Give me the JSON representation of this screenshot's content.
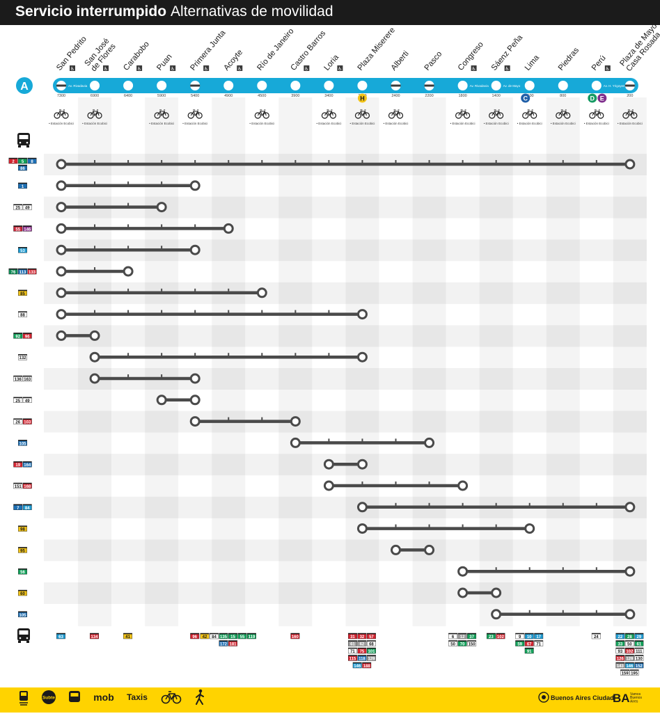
{
  "header": {
    "title": "Servicio interrumpido",
    "subtitle": "Alternativas de movilidad"
  },
  "line": {
    "letter": "A",
    "color": "#17a9d8"
  },
  "stations": [
    {
      "name": "San Pedrito",
      "access": true,
      "street": "Av. Rivadavia",
      "num": "7300",
      "bike": true,
      "open": false
    },
    {
      "name": "San José de Flores",
      "access": true,
      "street": "",
      "num": "6900",
      "bike": true,
      "open": true
    },
    {
      "name": "Carabobo",
      "access": true,
      "street": "",
      "num": "6400",
      "bike": false,
      "open": true
    },
    {
      "name": "Puan",
      "access": true,
      "street": "",
      "num": "5900",
      "bike": true,
      "open": true
    },
    {
      "name": "Primera Junta",
      "access": true,
      "street": "",
      "num": "5400",
      "bike": true,
      "open": false
    },
    {
      "name": "Acoyte",
      "access": true,
      "street": "",
      "num": "4900",
      "bike": false,
      "open": true
    },
    {
      "name": "Río de Janeiro",
      "access": false,
      "street": "",
      "num": "4500",
      "bike": true,
      "open": true
    },
    {
      "name": "Castro Barros",
      "access": true,
      "street": "",
      "num": "3900",
      "bike": false,
      "open": true
    },
    {
      "name": "Loria",
      "access": true,
      "street": "",
      "num": "3400",
      "bike": true,
      "open": true
    },
    {
      "name": "Plaza Miserere",
      "access": false,
      "street": "",
      "num": "2800",
      "bike": true,
      "open": true
    },
    {
      "name": "Alberti",
      "access": false,
      "street": "",
      "num": "2400",
      "bike": true,
      "open": false
    },
    {
      "name": "Pasco",
      "access": false,
      "street": "",
      "num": "2200",
      "bike": false,
      "open": false
    },
    {
      "name": "Congreso",
      "access": true,
      "street": "Av. Rivadavia",
      "num": "1800",
      "bike": true,
      "open": true
    },
    {
      "name": "Sáenz Peña",
      "access": true,
      "street": "Av. de Mayo",
      "num": "1400",
      "bike": true,
      "open": true
    },
    {
      "name": "Lima",
      "access": false,
      "street": "",
      "num": "1100",
      "bike": true,
      "open": true
    },
    {
      "name": "Piedras",
      "access": false,
      "street": "",
      "num": "800",
      "bike": true,
      "open": true
    },
    {
      "name": "Perú",
      "access": true,
      "street": "Av. H. Yrigoyen",
      "num": "",
      "bike": true,
      "open": true
    },
    {
      "name": "Plaza de Mayo Casa Rosada",
      "access": false,
      "street": "",
      "num": "200",
      "bike": true,
      "open": false
    }
  ],
  "bike_label": "• Estación Ecobici",
  "transfers": [
    {
      "station": 9,
      "letter": "H",
      "color": "#f2c318",
      "text": "#1b1b1b"
    },
    {
      "station": 14,
      "letter": "C",
      "color": "#1f5fa8",
      "text": "#ffffff"
    },
    {
      "station": 16,
      "letter": "D",
      "color": "#159a63",
      "text": "#ffffff"
    },
    {
      "station": 16,
      "letter": "E",
      "color": "#7f2e8c",
      "text": "#ffffff",
      "offset": 14
    }
  ],
  "bus_rows": [
    {
      "from": 0,
      "to": 17,
      "badges": [
        {
          "n": "2",
          "c": "#d32531"
        },
        {
          "n": "5",
          "c": "#13a05a"
        },
        {
          "n": "8",
          "c": "#1d6fb4"
        },
        {
          "n": "86",
          "c": "#1d6fb4"
        }
      ]
    },
    {
      "from": 0,
      "to": 4,
      "badges": [
        {
          "n": "1",
          "c": "#1d6fb4"
        }
      ]
    },
    {
      "from": 0,
      "to": 3,
      "badges": [
        {
          "n": "25",
          "c": "#ffffff"
        },
        {
          "n": "49",
          "c": "#ffffff"
        }
      ]
    },
    {
      "from": 0,
      "to": 5,
      "badges": [
        {
          "n": "55",
          "c": "#c8273a"
        },
        {
          "n": "146",
          "c": "#8c2f8c"
        }
      ]
    },
    {
      "from": 0,
      "to": 4,
      "badges": [
        {
          "n": "53",
          "c": "#1f9bd2"
        }
      ]
    },
    {
      "from": 0,
      "to": 2,
      "badges": [
        {
          "n": "76",
          "c": "#0f8a55"
        },
        {
          "n": "113",
          "c": "#1d6fb4"
        },
        {
          "n": "133",
          "c": "#d32531"
        }
      ]
    },
    {
      "from": 0,
      "to": 6,
      "badges": [
        {
          "n": "85",
          "c": "#f2c318"
        }
      ]
    },
    {
      "from": 0,
      "to": 9,
      "badges": [
        {
          "n": "88",
          "c": "#ffffff"
        }
      ]
    },
    {
      "from": 0,
      "to": 1,
      "badges": [
        {
          "n": "92",
          "c": "#13a05a"
        },
        {
          "n": "96",
          "c": "#d32531"
        }
      ]
    },
    {
      "from": 1,
      "to": 9,
      "badges": [
        {
          "n": "132",
          "c": "#ffffff"
        }
      ]
    },
    {
      "from": 1,
      "to": 4,
      "badges": [
        {
          "n": "136",
          "c": "#ffffff"
        },
        {
          "n": "163",
          "c": "#ffffff"
        }
      ]
    },
    {
      "from": 3,
      "to": 4,
      "badges": [
        {
          "n": "25",
          "c": "#ffffff"
        },
        {
          "n": "49",
          "c": "#ffffff"
        }
      ]
    },
    {
      "from": 4,
      "to": 7,
      "badges": [
        {
          "n": "26",
          "c": "#ffffff"
        },
        {
          "n": "103",
          "c": "#d32531"
        }
      ]
    },
    {
      "from": 7,
      "to": 11,
      "badges": [
        {
          "n": "105",
          "c": "#1d6fb4"
        }
      ]
    },
    {
      "from": 8,
      "to": 9,
      "badges": [
        {
          "n": "19",
          "c": "#d32531"
        },
        {
          "n": "164",
          "c": "#1d6fb4"
        }
      ]
    },
    {
      "from": 8,
      "to": 12,
      "badges": [
        {
          "n": "151",
          "c": "#ffffff"
        },
        {
          "n": "168",
          "c": "#d32531"
        }
      ]
    },
    {
      "from": 9,
      "to": 17,
      "badges": [
        {
          "n": "7",
          "c": "#1d6fb4"
        },
        {
          "n": "84",
          "c": "#1f9bd2"
        }
      ]
    },
    {
      "from": 9,
      "to": 14,
      "badges": [
        {
          "n": "98",
          "c": "#f2c318"
        }
      ]
    },
    {
      "from": 10,
      "to": 11,
      "badges": [
        {
          "n": "95",
          "c": "#f2c318"
        }
      ]
    },
    {
      "from": 12,
      "to": 17,
      "badges": [
        {
          "n": "56",
          "c": "#13a05a"
        }
      ]
    },
    {
      "from": 12,
      "to": 13,
      "badges": [
        {
          "n": "60",
          "c": "#f2c318"
        }
      ]
    },
    {
      "from": 13,
      "to": 17,
      "badges": [
        {
          "n": "105",
          "c": "#1d6fb4"
        }
      ]
    }
  ],
  "bottom_buses": [
    {
      "station": 0,
      "rows": [
        [
          {
            "n": "63",
            "c": "#1f9bd2"
          }
        ]
      ]
    },
    {
      "station": 1,
      "rows": [
        [
          {
            "n": "134",
            "c": "#d32531"
          }
        ]
      ]
    },
    {
      "station": 2,
      "rows": [
        [
          {
            "n": "41",
            "c": "#f2c318"
          }
        ]
      ]
    },
    {
      "station": 4,
      "rows": [
        [
          {
            "n": "96",
            "c": "#d32531"
          }
        ]
      ]
    },
    {
      "station": 5,
      "rows": [
        [
          {
            "n": "42",
            "c": "#f2c318"
          },
          {
            "n": "84",
            "c": "#ffffff"
          },
          {
            "n": "135",
            "c": "#13a05a"
          },
          {
            "n": "15",
            "c": "#13a05a"
          },
          {
            "n": "55",
            "c": "#13a05a"
          },
          {
            "n": "119",
            "c": "#13a05a"
          }
        ],
        [
          {
            "n": "172",
            "c": "#1d6fb4"
          },
          {
            "n": "181",
            "c": "#d32531"
          }
        ]
      ]
    },
    {
      "station": 7,
      "rows": [
        [
          {
            "n": "160",
            "c": "#d32531"
          }
        ]
      ]
    },
    {
      "station": 9,
      "rows": [
        [
          {
            "n": "31",
            "c": "#d32531"
          },
          {
            "n": "32",
            "c": "#d32531"
          },
          {
            "n": "57",
            "c": "#d32531"
          }
        ],
        [
          {
            "n": "61",
            "c": "#9e9e9e"
          },
          {
            "n": "62",
            "c": "#9e9e9e"
          },
          {
            "n": "68",
            "c": "#ffffff"
          }
        ],
        [
          {
            "n": "71",
            "c": "#ffffff"
          },
          {
            "n": "75",
            "c": "#d32531"
          },
          {
            "n": "101",
            "c": "#13a05a"
          }
        ],
        [
          {
            "n": "115",
            "c": "#d32531"
          },
          {
            "n": "118",
            "c": "#1d6fb4"
          },
          {
            "n": "129",
            "c": "#9e9e9e"
          }
        ],
        [
          {
            "n": "146",
            "c": "#1f9bd2"
          },
          {
            "n": "188",
            "c": "#d32531"
          }
        ]
      ]
    },
    {
      "station": 12,
      "rows": [
        [
          {
            "n": "6",
            "c": "#ffffff"
          },
          {
            "n": "12",
            "c": "#9e9e9e"
          },
          {
            "n": "37",
            "c": "#13a05a"
          }
        ],
        [
          {
            "n": "50",
            "c": "#ffffff"
          },
          {
            "n": "70",
            "c": "#13a05a"
          },
          {
            "n": "150",
            "c": "#ffffff"
          }
        ]
      ]
    },
    {
      "station": 13,
      "rows": [
        [
          {
            "n": "23",
            "c": "#13a05a"
          },
          {
            "n": "102",
            "c": "#d32531"
          }
        ]
      ]
    },
    {
      "station": 14,
      "rows": [
        [
          {
            "n": "9",
            "c": "#ffffff"
          },
          {
            "n": "10",
            "c": "#1f9bd2"
          },
          {
            "n": "17",
            "c": "#1f9bd2"
          }
        ],
        [
          {
            "n": "59",
            "c": "#13a05a"
          },
          {
            "n": "67",
            "c": "#d32531"
          },
          {
            "n": "71",
            "c": "#ffffff"
          }
        ],
        [
          {
            "n": "91",
            "c": "#13a05a"
          }
        ]
      ]
    },
    {
      "station": 16,
      "rows": [
        [
          {
            "n": "24",
            "c": "#ffffff"
          }
        ]
      ]
    },
    {
      "station": 17,
      "rows": [
        [
          {
            "n": "22",
            "c": "#1f9bd2"
          },
          {
            "n": "28",
            "c": "#13a05a"
          },
          {
            "n": "29",
            "c": "#1f9bd2"
          }
        ],
        [
          {
            "n": "33",
            "c": "#13a05a"
          },
          {
            "n": "50",
            "c": "#ffffff"
          },
          {
            "n": "61",
            "c": "#13a05a"
          }
        ],
        [
          {
            "n": "93",
            "c": "#ffffff"
          },
          {
            "n": "102",
            "c": "#d32531"
          },
          {
            "n": "111",
            "c": "#ffffff"
          }
        ],
        [
          {
            "n": "126",
            "c": "#d32531"
          },
          {
            "n": "129",
            "c": "#9e9e9e"
          },
          {
            "n": "130",
            "c": "#ffffff"
          }
        ],
        [
          {
            "n": "143",
            "c": "#9e9e9e"
          },
          {
            "n": "146",
            "c": "#1f9bd2"
          },
          {
            "n": "152",
            "c": "#1d6fb4"
          }
        ],
        [
          {
            "n": "159",
            "c": "#ffffff"
          },
          {
            "n": "195",
            "c": "#ffffff"
          }
        ]
      ]
    }
  ],
  "footer": {
    "items": [
      {
        "id": "train",
        "label": ""
      },
      {
        "id": "subte",
        "label": "Subte"
      },
      {
        "id": "bus",
        "label": ""
      },
      {
        "id": "mob",
        "label": "mob"
      },
      {
        "id": "taxis",
        "label": "Taxis"
      },
      {
        "id": "bike",
        "label": ""
      },
      {
        "id": "walk",
        "label": ""
      }
    ],
    "brand_city": "Buenos Aires Ciudad",
    "brand_ba": "BA",
    "brand_ba_sub": "Vamos Buenos Aires"
  }
}
